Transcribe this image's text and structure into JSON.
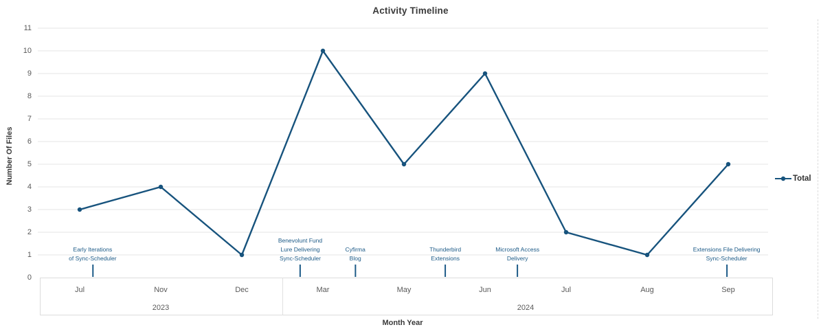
{
  "chart_data": {
    "type": "line",
    "title": "Activity Timeline",
    "xlabel": "Month Year",
    "ylabel": "Number Of Files",
    "categories": [
      "Jul",
      "Nov",
      "Dec",
      "Mar",
      "May",
      "Jun",
      "Jul",
      "Aug",
      "Sep"
    ],
    "year_groups": [
      {
        "label": "2023",
        "start": 0,
        "end": 2
      },
      {
        "label": "2024",
        "start": 3,
        "end": 8
      }
    ],
    "series": [
      {
        "name": "Total",
        "values": [
          3,
          4,
          1,
          10,
          5,
          9,
          2,
          1,
          5
        ],
        "color": "#17537D"
      }
    ],
    "ylim": [
      0,
      11
    ],
    "yticks": [
      0,
      1,
      2,
      3,
      4,
      5,
      6,
      7,
      8,
      9,
      10,
      11
    ],
    "grid": true,
    "legend_position": "right",
    "annotations": [
      {
        "pos": 0.16,
        "lines": [
          "Early Iterations",
          "of Sync-Scheduler"
        ]
      },
      {
        "pos": 2.72,
        "lines": [
          "Benevolunt Fund",
          "Lure Delivering",
          "Sync-Scheduler"
        ]
      },
      {
        "pos": 3.4,
        "lines": [
          "Cyfirma",
          "Blog"
        ]
      },
      {
        "pos": 4.51,
        "lines": [
          "Thunderbird",
          "Extensions"
        ]
      },
      {
        "pos": 5.4,
        "lines": [
          "Microsoft Access",
          "Delivery"
        ]
      },
      {
        "pos": 7.98,
        "lines": [
          "Extensions File Delivering",
          "Sync-Scheduler"
        ]
      }
    ],
    "colors": {
      "line": "#17537D",
      "annotation": "#1C5A87",
      "gridline": "#E6E6E6",
      "axis_text": "#595959",
      "title_text": "#3A3A3A",
      "band_border": "#DCDCDC"
    }
  }
}
